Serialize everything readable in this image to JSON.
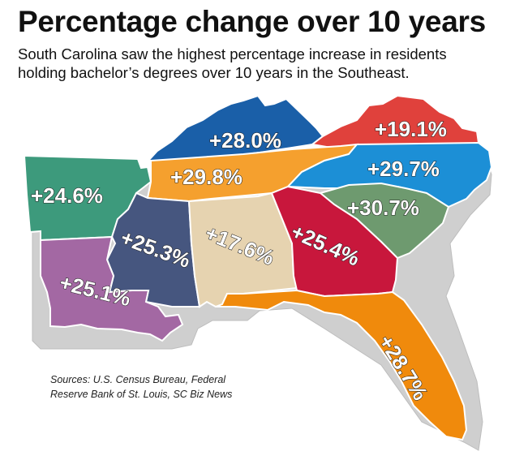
{
  "header": {
    "title": "Percentage change over 10 years",
    "subtitle_line1": "South Carolina saw the highest percentage increase in residents",
    "subtitle_line2": "holding bachelor’s degrees over 10 years in the Southeast."
  },
  "map": {
    "states": [
      {
        "state": "Kentucky",
        "label": "+28.0%",
        "value": 28.0,
        "color": "#1a5fa8"
      },
      {
        "state": "Virginia",
        "label": "+19.1%",
        "value": 19.1,
        "color": "#e0413c"
      },
      {
        "state": "Arkansas",
        "label": "+24.6%",
        "value": 24.6,
        "color": "#3d9a7c"
      },
      {
        "state": "Tennessee",
        "label": "+29.8%",
        "value": 29.8,
        "color": "#f5a02e"
      },
      {
        "state": "North Carolina",
        "label": "+29.7%",
        "value": 29.7,
        "color": "#1c8fd6"
      },
      {
        "state": "South Carolina",
        "label": "+30.7%",
        "value": 30.7,
        "color": "#6e9a6f"
      },
      {
        "state": "Mississippi",
        "label": "+25.3%",
        "value": 25.3,
        "color": "#46567f"
      },
      {
        "state": "Alabama",
        "label": "+17.6%",
        "value": 17.6,
        "color": "#e6d3b0"
      },
      {
        "state": "Georgia",
        "label": "+25.4%",
        "value": 25.4,
        "color": "#c8173c"
      },
      {
        "state": "Louisiana",
        "label": "+25.1%",
        "value": 25.1,
        "color": "#a368a3"
      },
      {
        "state": "Florida",
        "label": "+28.7%",
        "value": 28.7,
        "color": "#f08a0c"
      }
    ],
    "extrusion_color": "#cfcfcf",
    "outline_color": "#ffffff"
  },
  "footer": {
    "sources_line1": "Sources: U.S. Census Bureau, Federal",
    "sources_line2": "Reserve Bank of St. Louis, SC Biz News"
  }
}
